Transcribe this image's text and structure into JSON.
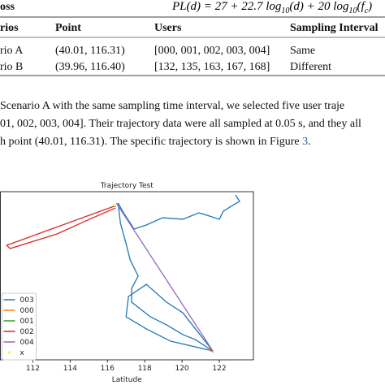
{
  "table": {
    "caption_fragment": "oss",
    "formula": [
      "PL(d) = 27 + 22.7 log",
      "10",
      "(d) + 20 log",
      "10",
      "(f",
      "c",
      ")"
    ],
    "header": [
      "rios",
      "Point",
      "Users",
      "Sampling Interval"
    ],
    "rows": [
      [
        "rio A",
        "(40.01, 116.31)",
        "[000, 001, 002, 003, 004]",
        "Same"
      ],
      [
        "rio B",
        "(39.96, 116.40)",
        "[132, 135, 163, 167, 168]",
        "Different"
      ]
    ]
  },
  "paragraph": {
    "lines": [
      "Scenario A with the same sampling time interval, we selected five user traje",
      "01, 002, 003, 004]. Their trajectory data were all sampled at 0.05 s, and they all",
      "h point (40.01, 116.31). The specific trajectory is shown in Figure "
    ],
    "figure_ref": "3",
    "end": "."
  },
  "chart_data": {
    "type": "line",
    "title": "Trajectory Test",
    "x_label": "Latitude",
    "xlim": [
      110.26,
      123.83
    ],
    "xticks": [
      112,
      114,
      116,
      118,
      120,
      122
    ],
    "ylim": [
      0,
      10
    ],
    "legend_position": "lower left",
    "series": [
      {
        "name": "003",
        "color": "#1f77b4",
        "kind": "line",
        "x": [
          122.87,
          123.09,
          122.78,
          122.22,
          122,
          121.48,
          120.91,
          120.04,
          118.96,
          118.09,
          117.43,
          116.87,
          116.57,
          116.7,
          117,
          117.22,
          117.65,
          117.3,
          117.3,
          118.3,
          119.17,
          120.04,
          120.7,
          121.65,
          119.39,
          118.09,
          117,
          117.13,
          118.09,
          119.17,
          120.04,
          121.65
        ],
        "values": [
          9.81,
          9.42,
          9.23,
          8.84,
          8.36,
          8.55,
          8.74,
          8.36,
          8.45,
          8.02,
          7.78,
          8.74,
          9.32,
          8.12,
          6.91,
          5.94,
          4.98,
          4.25,
          3.43,
          2.56,
          2.08,
          1.5,
          1.21,
          0.53,
          1.11,
          1.84,
          2.56,
          3.77,
          4.49,
          3.43,
          2.8,
          0.53
        ]
      },
      {
        "name": "000",
        "color": "#ff7f0e",
        "kind": "line",
        "x": [
          121.4,
          121.7
        ],
        "values": [
          0.6,
          0.45
        ]
      },
      {
        "name": "001",
        "color": "#2ca02c",
        "kind": "line",
        "x": [
          116.3,
          116.45
        ],
        "values": [
          9.2,
          9.1
        ]
      },
      {
        "name": "002",
        "color": "#d62728",
        "kind": "line",
        "x": [
          116.35,
          110.6,
          110.78,
          113.3,
          115.04,
          116.43
        ],
        "values": [
          9.13,
          6.81,
          6.62,
          7.49,
          8.36,
          9.03
        ]
      },
      {
        "name": "004",
        "color": "#9467bd",
        "kind": "line",
        "x": [
          116.48,
          121.65
        ],
        "values": [
          9.32,
          0.53
        ]
      },
      {
        "name": "x",
        "color": "#ffeb3b",
        "kind": "scatter",
        "x": [
          116.35
        ],
        "values": [
          9.2
        ]
      }
    ]
  }
}
